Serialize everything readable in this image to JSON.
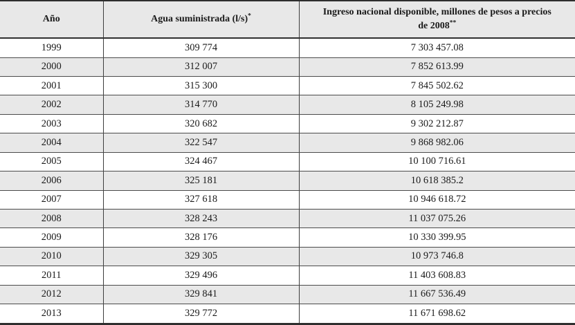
{
  "chart_data": {
    "type": "table",
    "title": "",
    "legend": "none",
    "grid": "full-row-borders-with-column-separators",
    "stripe_color": "#e8e8e8",
    "border_color": "#3c3c3c",
    "text_color": "#1a1a1a",
    "columns": [
      {
        "label": "Año",
        "footnote_mark": ""
      },
      {
        "label": "Agua suministrada (l/s)",
        "footnote_mark": "*"
      },
      {
        "label": "Ingreso nacional disponible, millones de pesos a precios de 2008",
        "label_line1": "Ingreso nacional disponible, millones de pesos a precios",
        "label_line2": "de 2008",
        "footnote_mark": "**"
      }
    ],
    "rows": [
      {
        "ano": "1999",
        "agua_suministrada": "309 774",
        "ingreso_nacional": "7 303 457.08"
      },
      {
        "ano": "2000",
        "agua_suministrada": "312 007",
        "ingreso_nacional": "7 852 613.99"
      },
      {
        "ano": "2001",
        "agua_suministrada": "315 300",
        "ingreso_nacional": "7 845 502.62"
      },
      {
        "ano": "2002",
        "agua_suministrada": "314 770",
        "ingreso_nacional": "8 105 249.98"
      },
      {
        "ano": "2003",
        "agua_suministrada": "320 682",
        "ingreso_nacional": "9 302 212.87"
      },
      {
        "ano": "2004",
        "agua_suministrada": "322 547",
        "ingreso_nacional": "9 868 982.06"
      },
      {
        "ano": "2005",
        "agua_suministrada": "324 467",
        "ingreso_nacional": "10 100 716.61"
      },
      {
        "ano": "2006",
        "agua_suministrada": "325 181",
        "ingreso_nacional": "10 618 385.2"
      },
      {
        "ano": "2007",
        "agua_suministrada": "327 618",
        "ingreso_nacional": "10 946 618.72"
      },
      {
        "ano": "2008",
        "agua_suministrada": "328 243",
        "ingreso_nacional": "11 037 075.26"
      },
      {
        "ano": "2009",
        "agua_suministrada": "328 176",
        "ingreso_nacional": "10 330 399.95"
      },
      {
        "ano": "2010",
        "agua_suministrada": "329 305",
        "ingreso_nacional": "10 973 746.8"
      },
      {
        "ano": "2011",
        "agua_suministrada": "329 496",
        "ingreso_nacional": "11 403 608.83"
      },
      {
        "ano": "2012",
        "agua_suministrada": "329 841",
        "ingreso_nacional": "11 667 536.49"
      },
      {
        "ano": "2013",
        "agua_suministrada": "329 772",
        "ingreso_nacional": "11 671 698.62"
      }
    ]
  }
}
